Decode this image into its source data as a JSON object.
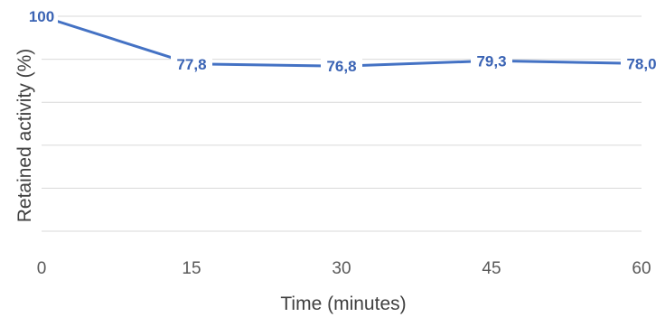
{
  "chart_data": {
    "type": "line",
    "title": "",
    "xlabel": "Time (minutes)",
    "ylabel": "Retained activity (%)",
    "x": [
      0,
      15,
      30,
      45,
      60
    ],
    "x_tick_labels": [
      "0",
      "15",
      "30",
      "45",
      "60"
    ],
    "series": [
      {
        "values": [
          100,
          77.8,
          76.8,
          79.3,
          78.0
        ],
        "data_labels": [
          "100",
          "77,8",
          "76,8",
          "79,3",
          "78,0"
        ],
        "color": "#4472c4"
      }
    ],
    "xlim": [
      0,
      60
    ],
    "ylim": [
      0,
      100
    ],
    "grid": true,
    "legend": "none"
  }
}
